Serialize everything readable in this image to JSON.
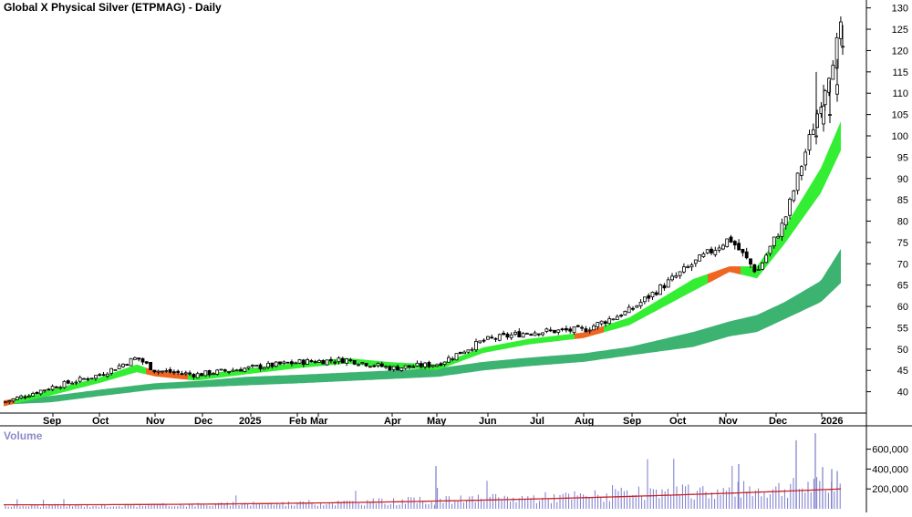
{
  "title": "Global X Physical Silver (ETPMAG) - Daily",
  "volume_label": "Volume",
  "colors": {
    "background": "#ffffff",
    "candle": "#000000",
    "short_band_up": "#33ee33",
    "short_band_down": "#ee6622",
    "long_band": "#3cb371",
    "volume_bar": "#7a7acc",
    "volume_ma": "#cc2222",
    "axis": "#000000"
  },
  "chart_data": [
    {
      "type": "candlestick",
      "title": "Global X Physical Silver (ETPMAG) - Daily",
      "x_ticks": [
        "Sep",
        "Oct",
        "Nov",
        "Dec",
        "2025",
        "Feb",
        "Mar",
        "Apr",
        "May",
        "Jun",
        "Jul",
        "Aug",
        "Sep",
        "Oct",
        "Nov",
        "Dec",
        "2026"
      ],
      "y_ticks": [
        40,
        45,
        50,
        55,
        60,
        65,
        70,
        75,
        80,
        85,
        90,
        95,
        100,
        105,
        110,
        115,
        120,
        125,
        130
      ],
      "ylim": [
        35,
        131
      ],
      "y_axis_side": "right",
      "grid": false,
      "series_close": [
        {
          "date": "2024-08",
          "value": 37.5
        },
        {
          "date": "2024-09",
          "value": 41.0
        },
        {
          "date": "2024-10",
          "value": 44.0
        },
        {
          "date": "2024-10-late",
          "value": 48.0
        },
        {
          "date": "2024-11",
          "value": 45.0
        },
        {
          "date": "2024-12",
          "value": 44.0
        },
        {
          "date": "2025-01",
          "value": 45.5
        },
        {
          "date": "2025-02",
          "value": 47.0
        },
        {
          "date": "2025-03",
          "value": 47.5
        },
        {
          "date": "2025-04",
          "value": 45.5
        },
        {
          "date": "2025-05",
          "value": 46.5
        },
        {
          "date": "2025-06",
          "value": 52.0
        },
        {
          "date": "2025-07",
          "value": 54.0
        },
        {
          "date": "2025-08",
          "value": 54.5
        },
        {
          "date": "2025-09",
          "value": 59.0
        },
        {
          "date": "2025-10",
          "value": 70.0
        },
        {
          "date": "2025-10-mid",
          "value": 76.0
        },
        {
          "date": "2025-11",
          "value": 68.0
        },
        {
          "date": "2025-12",
          "value": 80.0
        },
        {
          "date": "2025-12-late",
          "value": 108.0
        },
        {
          "date": "2026-01",
          "value": 125.0
        }
      ],
      "short_band": {
        "upper": [
          37.5,
          40.0,
          43.0,
          46.0,
          44.5,
          43.5,
          45.0,
          46.5,
          47.5,
          46.5,
          46.0,
          50.0,
          52.0,
          53.5,
          57.0,
          66.0,
          69.0,
          69.0,
          78.0,
          92.0,
          103.0
        ],
        "lower": [
          37.0,
          39.5,
          42.5,
          45.0,
          44.0,
          43.0,
          44.5,
          46.0,
          47.0,
          46.0,
          45.5,
          49.5,
          51.5,
          53.0,
          56.0,
          64.0,
          68.5,
          67.0,
          75.0,
          87.0,
          97.0
        ]
      },
      "long_band": {
        "upper": [
          38.0,
          39.0,
          40.5,
          41.5,
          42.0,
          42.5,
          43.5,
          44.0,
          44.5,
          45.0,
          45.5,
          47.0,
          48.0,
          49.0,
          50.5,
          54.0,
          56.5,
          58.0,
          61.0,
          66.0,
          73.5
        ],
        "lower": [
          37.0,
          37.5,
          39.0,
          40.0,
          40.5,
          41.0,
          41.5,
          42.0,
          42.5,
          43.0,
          43.5,
          45.0,
          46.0,
          47.0,
          48.5,
          50.5,
          53.0,
          54.0,
          57.0,
          61.0,
          65.5
        ]
      }
    },
    {
      "type": "bar",
      "title": "Volume",
      "y_ticks": [
        200000,
        400000,
        600000
      ],
      "ylim": [
        0,
        780000
      ],
      "volume_peak": 680000,
      "volume_ma_start": 40000,
      "volume_ma_end": 200000
    }
  ]
}
